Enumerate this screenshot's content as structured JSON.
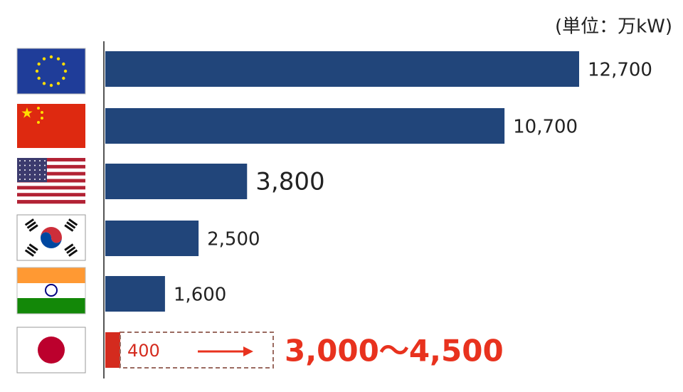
{
  "chart_data": {
    "type": "hbar",
    "unit_label": "(単位：万kW)",
    "categories": [
      null,
      null,
      null,
      null,
      null,
      null
    ],
    "values": [
      12700,
      10700,
      3800,
      2500,
      1600,
      400
    ],
    "value_labels": [
      "12,700",
      "10,700",
      "3,800",
      "2,500",
      "1,600",
      "400"
    ],
    "colors": [
      "#21457a",
      "#21457a",
      "#21457a",
      "#21457a",
      "#21457a",
      "#d42b1e"
    ],
    "target": {
      "low": 3000,
      "high": 4500,
      "label": "3,000～4,500",
      "color": "#e8321e"
    }
  }
}
